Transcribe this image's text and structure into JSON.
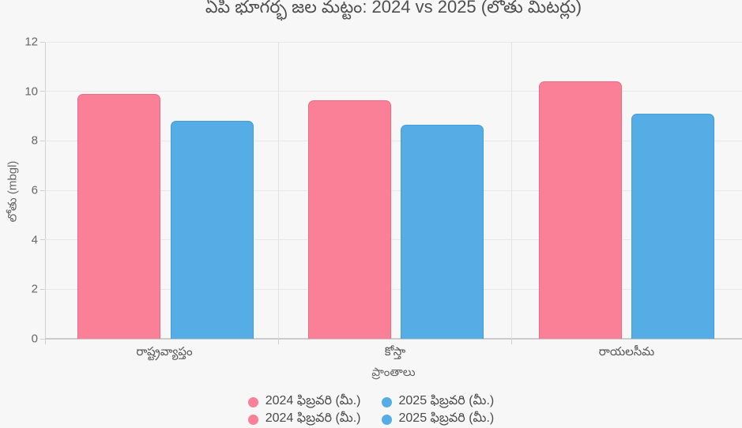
{
  "title": "ఏపి భూగర్భ జల మట్టం: 2024 vs 2025 (లోతు మిటర్లు)",
  "chart_data": {
    "type": "bar",
    "title": "ఏపి భూగర్భ జల మట్టం: 2024 vs 2025 (లోతు మిటర్లు)",
    "categories": [
      "రాష్ట్రవ్యాప్తం",
      "కోస్తా",
      "రాయలసీమ"
    ],
    "series": [
      {
        "name": "2024 ఫిబ్రవరి (మీ.)",
        "color": "#fa8098",
        "border_color": "#f06a87",
        "values": [
          9.9,
          9.65,
          10.4
        ]
      },
      {
        "name": "2025 ఫిబ్రవరి (మీ.)",
        "color": "#56ace4",
        "border_color": "#3f9edc",
        "values": [
          8.8,
          8.65,
          9.1
        ]
      }
    ],
    "xlabel": "ప్రాంతాలు",
    "ylabel": "లోతు (mbgl)",
    "ylim": [
      0,
      12
    ],
    "yticks": [
      0,
      2,
      4,
      6,
      8,
      10,
      12
    ],
    "grid": true,
    "legend_position": "bottom"
  },
  "colors": {
    "background": "#f7f7f7",
    "gridline": "#e8e8e8",
    "axis": "#cbcbcb",
    "title_text": "#4f4f4f",
    "tick_text": "#666666"
  }
}
